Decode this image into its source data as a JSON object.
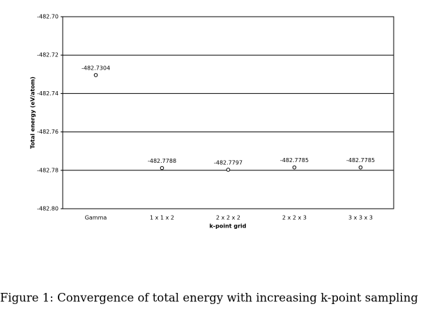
{
  "chart_data": {
    "type": "scatter",
    "categories": [
      "Gamma",
      "1 x 1 x 2",
      "2 x 2 x 2",
      "2 x 2 x 3",
      "3 x 3 x 3"
    ],
    "values": [
      -482.7304,
      -482.7788,
      -482.7797,
      -482.7785,
      -482.7785
    ],
    "y_label": "Total energy (eV/atom)",
    "x_label": "k-point grid",
    "caption": "Figure 1: Convergence of total energy with increasing k-point sampling",
    "ylim": [
      -482.8,
      -482.7
    ],
    "yticks": [
      {
        "value": -482.8,
        "label": "-482.80"
      },
      -482.78,
      -482.76,
      -482.74,
      -482.72,
      {
        "value": -482.7,
        "label": "-482.70"
      }
    ],
    "grid": true,
    "color": "#000000"
  }
}
